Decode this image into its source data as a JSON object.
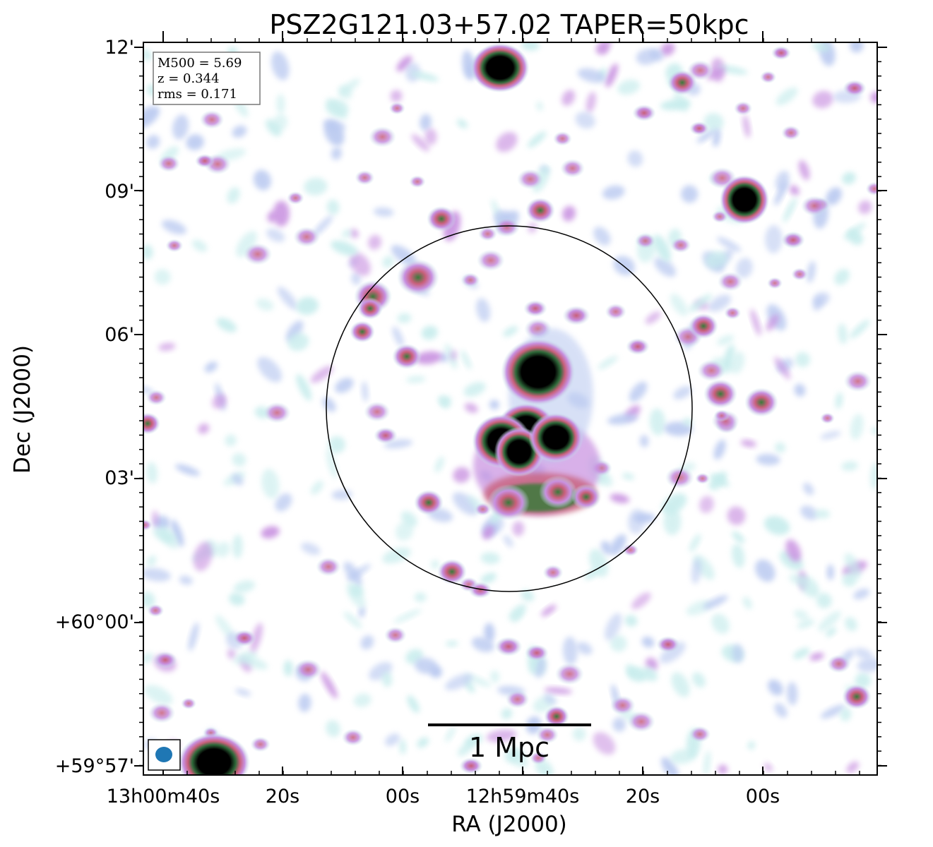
{
  "title": "PSZ2G121.03+57.02 TAPER=50kpc",
  "xlabel": "RA (J2000)",
  "ylabel": "Dec (J2000)",
  "ra_ticks": [
    "13h00m40s",
    "20s",
    "00s",
    "12h59m40s",
    "20s",
    "00s"
  ],
  "dec_ticks": [
    "12'",
    "09'",
    "06'",
    "03'",
    "+60°00'",
    "+59°57'"
  ],
  "info": {
    "m500": "M500 = 5.69",
    "z": "z = 0.344",
    "rms": "rms = 0.171"
  },
  "scalebar_label": "1 Mpc",
  "colors": {
    "faint": "#c6ecec",
    "low": "#b8c8f0",
    "mid": "#c890e0",
    "high": "#c8607a",
    "higher": "#3a7a3a",
    "peak": "#000000",
    "beam": "#1f77b4"
  }
}
